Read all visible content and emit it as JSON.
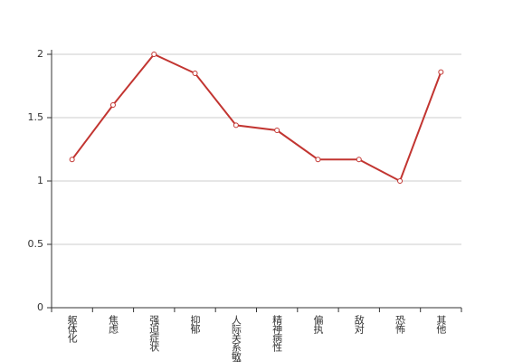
{
  "chart_data": {
    "type": "line",
    "categories": [
      "躯体化",
      "焦虑",
      "强迫症状",
      "抑郁",
      "人际关系敏感",
      "精神病性",
      "偏执",
      "敌对",
      "恐怖",
      "其他"
    ],
    "values": [
      1.17,
      1.6,
      2.0,
      1.85,
      1.44,
      1.4,
      1.17,
      1.17,
      1.0,
      1.86
    ],
    "color": "#c23531",
    "ylim": [
      0,
      2
    ],
    "yticks": [
      0,
      0.5,
      1,
      1.5,
      2
    ],
    "grid": true
  }
}
